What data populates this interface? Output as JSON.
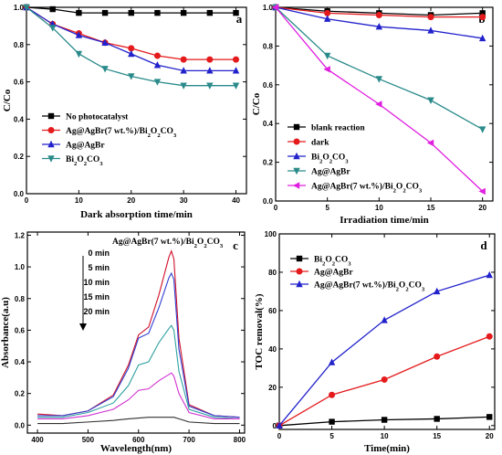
{
  "chart_data": [
    {
      "panel": "a",
      "type": "line",
      "xlabel": "Dark absorption time/min",
      "ylabel": "C/Co",
      "xlim": [
        0,
        42
      ],
      "ylim": [
        0,
        1.0
      ],
      "xticks": [
        0,
        10,
        20,
        30,
        40
      ],
      "yticks": [
        0,
        0.2,
        0.4,
        0.6,
        0.8,
        1.0
      ],
      "x": [
        0,
        5,
        10,
        15,
        20,
        25,
        30,
        35,
        40
      ],
      "legend_position": "lower-left",
      "series": [
        {
          "name": "No photocatalyst",
          "color": "#000000",
          "marker": "square",
          "values": [
            1.0,
            0.99,
            0.97,
            0.97,
            0.97,
            0.97,
            0.97,
            0.97,
            0.97
          ]
        },
        {
          "name": "Ag@AgBr(7 wt.%)/Bi2O2CO3",
          "color": "#e41a1c",
          "marker": "circle",
          "values": [
            1.0,
            0.91,
            0.86,
            0.81,
            0.78,
            0.74,
            0.72,
            0.72,
            0.72
          ]
        },
        {
          "name": "Ag@AgBr",
          "color": "#2222cc",
          "marker": "triangle",
          "values": [
            1.0,
            0.91,
            0.85,
            0.81,
            0.75,
            0.69,
            0.66,
            0.66,
            0.66
          ]
        },
        {
          "name": "Bi2O2CO3",
          "color": "#2a8a8a",
          "marker": "triangle-down",
          "values": [
            1.0,
            0.89,
            0.75,
            0.67,
            0.63,
            0.6,
            0.58,
            0.58,
            0.58
          ]
        }
      ]
    },
    {
      "panel": "b",
      "type": "line",
      "xlabel": "Irradiation time/min",
      "ylabel": "C/Co",
      "xlim": [
        0,
        21
      ],
      "ylim": [
        0,
        1.0
      ],
      "xticks": [
        0,
        5,
        10,
        15,
        20
      ],
      "yticks": [
        0.0,
        0.2,
        0.4,
        0.6,
        0.8,
        1.0
      ],
      "x": [
        0,
        5,
        10,
        15,
        20
      ],
      "legend_position": "lower-left",
      "series": [
        {
          "name": "blank reaction",
          "color": "#000000",
          "marker": "square",
          "values": [
            1.0,
            0.98,
            0.97,
            0.96,
            0.97
          ]
        },
        {
          "name": "dark",
          "color": "#e41a1c",
          "marker": "circle",
          "values": [
            1.0,
            0.97,
            0.96,
            0.95,
            0.95
          ]
        },
        {
          "name": "Bi2O2CO3",
          "color": "#2222cc",
          "marker": "triangle",
          "values": [
            1.0,
            0.94,
            0.9,
            0.88,
            0.84
          ]
        },
        {
          "name": "Ag@AgBr",
          "color": "#2a8a8a",
          "marker": "triangle-down",
          "values": [
            1.0,
            0.75,
            0.63,
            0.52,
            0.37
          ]
        },
        {
          "name": "Ag@AgBr(7 wt.%)/Bi2O2CO3",
          "color": "#e020e0",
          "marker": "triangle-left",
          "values": [
            1.0,
            0.68,
            0.5,
            0.3,
            0.05
          ]
        }
      ]
    },
    {
      "panel": "c",
      "type": "line",
      "title": "Ag@AgBr(7 wt.%)/Bi2O2CO3",
      "xlabel": "Wavelength(nm)",
      "ylabel": "Absorbance(a.u)",
      "xlim": [
        380,
        810
      ],
      "ylim": [
        -0.05,
        1.22
      ],
      "xticks": [
        400,
        500,
        600,
        700,
        800
      ],
      "yticks": [
        0.0,
        0.2,
        0.4,
        0.6,
        0.8,
        1.0,
        1.2
      ],
      "x": [
        400,
        450,
        500,
        550,
        580,
        600,
        620,
        640,
        660,
        665,
        670,
        680,
        700,
        750,
        800
      ],
      "annotations": [
        "0 min",
        "5 min",
        "10 min",
        "15 min",
        "20 min"
      ],
      "series": [
        {
          "name": "0 min",
          "color": "#d0102a",
          "values": [
            0.07,
            0.06,
            0.09,
            0.19,
            0.38,
            0.57,
            0.62,
            0.82,
            1.06,
            1.1,
            1.05,
            0.55,
            0.13,
            0.06,
            0.05
          ]
        },
        {
          "name": "5 min",
          "color": "#3040d0",
          "values": [
            0.06,
            0.06,
            0.09,
            0.18,
            0.36,
            0.55,
            0.58,
            0.74,
            0.93,
            0.96,
            0.92,
            0.48,
            0.12,
            0.06,
            0.05
          ]
        },
        {
          "name": "10 min",
          "color": "#30a0a0",
          "values": [
            0.05,
            0.05,
            0.08,
            0.14,
            0.25,
            0.38,
            0.4,
            0.52,
            0.61,
            0.63,
            0.6,
            0.34,
            0.1,
            0.05,
            0.04
          ]
        },
        {
          "name": "15 min",
          "color": "#d030d0",
          "values": [
            0.04,
            0.04,
            0.06,
            0.1,
            0.16,
            0.22,
            0.23,
            0.28,
            0.32,
            0.33,
            0.31,
            0.2,
            0.08,
            0.04,
            0.04
          ]
        },
        {
          "name": "20 min",
          "color": "#303030",
          "values": [
            0.01,
            0.01,
            0.02,
            0.03,
            0.04,
            0.045,
            0.05,
            0.05,
            0.05,
            0.05,
            0.05,
            0.04,
            0.02,
            0.01,
            0.01
          ]
        }
      ]
    },
    {
      "panel": "d",
      "type": "line",
      "xlabel": "Time(min)",
      "ylabel": "TOC removal(%)",
      "xlim": [
        0,
        20.5
      ],
      "ylim": [
        -2,
        100
      ],
      "xticks": [
        0,
        5,
        10,
        15,
        20
      ],
      "yticks": [
        0,
        20,
        40,
        60,
        80,
        100
      ],
      "x": [
        0,
        5,
        10,
        15,
        20
      ],
      "legend_position": "top-left",
      "series": [
        {
          "name": "Bi2O2CO3",
          "color": "#000000",
          "marker": "square",
          "values": [
            0,
            2,
            3,
            3.5,
            4.5
          ]
        },
        {
          "name": "Ag@AgBr",
          "color": "#e41a1c",
          "marker": "circle",
          "values": [
            0,
            16,
            24,
            36,
            46.5
          ]
        },
        {
          "name": "Ag@AgBr(7 wt.%)/Bi2O2CO3",
          "color": "#2222cc",
          "marker": "triangle",
          "values": [
            0,
            33,
            55,
            70,
            78.5
          ]
        }
      ]
    }
  ]
}
